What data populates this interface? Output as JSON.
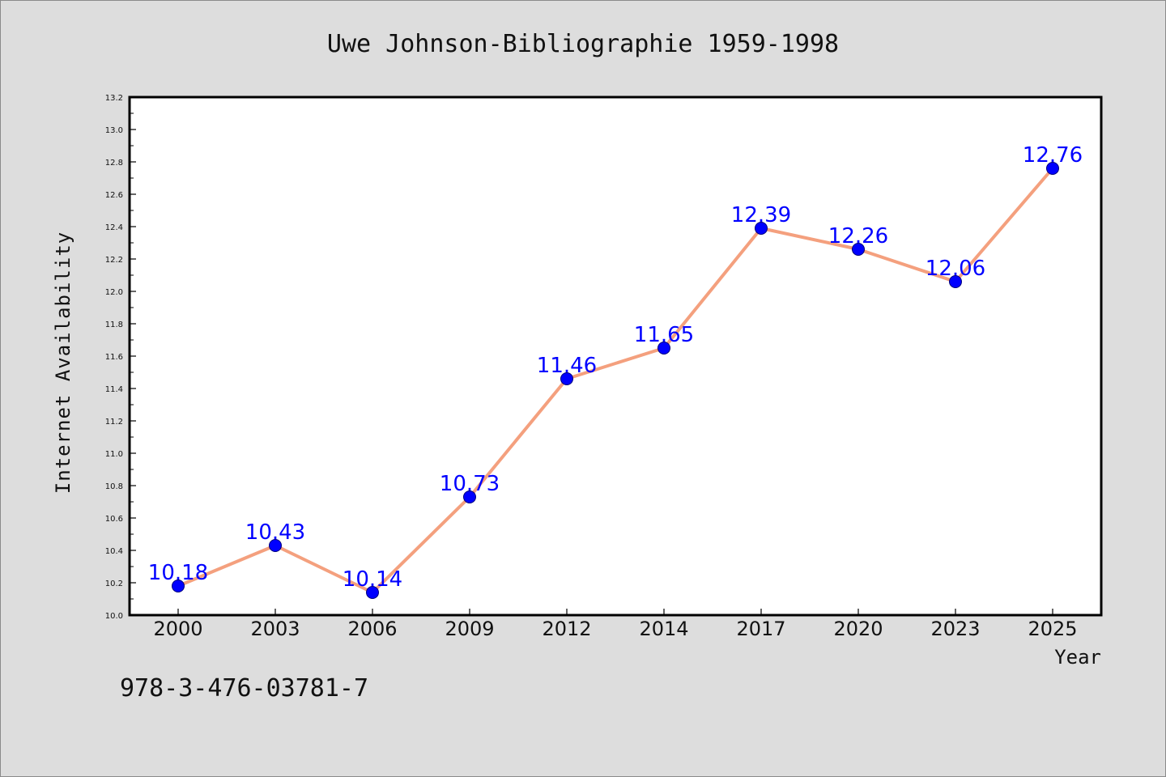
{
  "chart_data": {
    "type": "line",
    "title": "Uwe Johnson-Bibliographie 1959-1998",
    "xlabel": "Year",
    "ylabel": "Internet Availability",
    "categories": [
      "2000",
      "2003",
      "2006",
      "2009",
      "2012",
      "2014",
      "2017",
      "2020",
      "2023",
      "2025"
    ],
    "series": [
      {
        "values": [
          10.18,
          10.43,
          10.14,
          10.73,
          11.46,
          11.65,
          12.39,
          12.26,
          12.06,
          12.76
        ],
        "data_labels": [
          "10.18",
          "10.43",
          "10.14",
          "10.73",
          "11.46",
          "11.65",
          "12.39",
          "12.26",
          "12.06",
          "12.76"
        ]
      }
    ],
    "ylim": [
      10.0,
      13.2
    ],
    "y_ticks": [
      "10.0",
      "10.2",
      "10.4",
      "10.6",
      "10.8",
      "11.0",
      "11.2",
      "11.4",
      "11.6",
      "11.8",
      "12.0",
      "12.2",
      "12.4",
      "12.6",
      "12.8",
      "13.0",
      "13.2"
    ],
    "grid": false,
    "legend": "none",
    "colors": {
      "line": "#f4a07e",
      "marker": "#0000ff",
      "marker_edge": "#00007a",
      "data_label": "#0000ff",
      "plot_background": "#ffffff",
      "figure_background": "#dddddd"
    }
  },
  "footer": {
    "isbn": "978-3-476-03781-7"
  }
}
